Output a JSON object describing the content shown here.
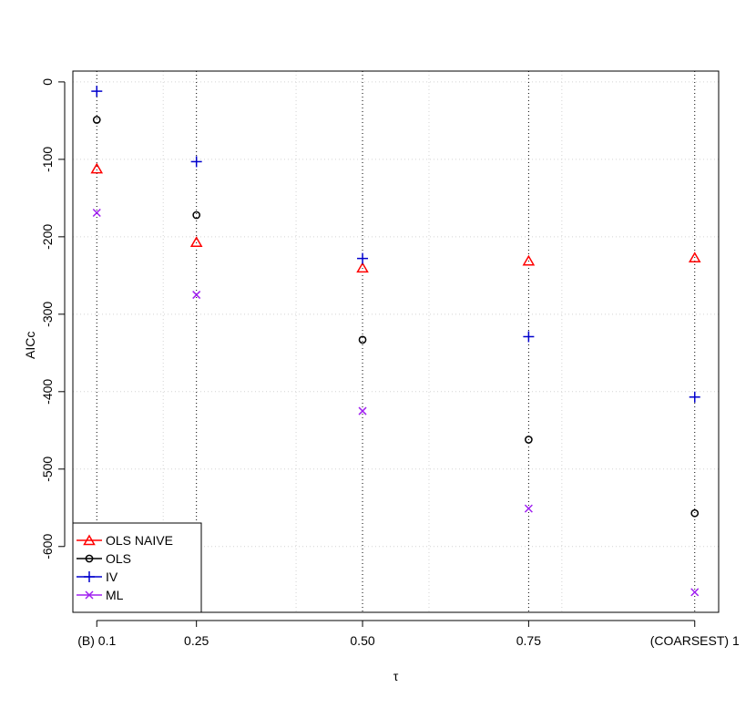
{
  "chart_data": {
    "type": "scatter",
    "title": "",
    "xlabel": "τ",
    "ylabel": "AICc",
    "x_tick_labels": [
      "(B) 0.1",
      "0.25",
      "0.50",
      "0.75",
      "(COARSEST) 1"
    ],
    "x_tick_values": [
      0.1,
      0.25,
      0.5,
      0.75,
      1.0
    ],
    "xlim": [
      0.064,
      1.036
    ],
    "ylim": [
      -685,
      14
    ],
    "y_ticks": [
      0,
      -100,
      -200,
      -300,
      -400,
      -500,
      -600
    ],
    "y_tick_labels": [
      "0",
      "-100",
      "-200",
      "-300",
      "-400",
      "-500",
      "-600"
    ],
    "grid": true,
    "legend_position": "bottom-left",
    "x": [
      0.1,
      0.25,
      0.5,
      0.75,
      1.0
    ],
    "series": [
      {
        "name": "OLS NAIVE",
        "marker": "triangle",
        "color": "#ff0000",
        "values": [
          -112,
          -207,
          -240,
          -231,
          -227
        ]
      },
      {
        "name": "OLS",
        "marker": "circle",
        "color": "#000000",
        "values": [
          -49,
          -172,
          -333,
          -462,
          -557
        ]
      },
      {
        "name": "IV",
        "marker": "plus",
        "color": "#0000cd",
        "values": [
          -12,
          -103,
          -228,
          -329,
          -407
        ]
      },
      {
        "name": "ML",
        "marker": "cross",
        "color": "#a020f0",
        "values": [
          -169,
          -275,
          -425,
          -551,
          -659
        ]
      }
    ]
  }
}
